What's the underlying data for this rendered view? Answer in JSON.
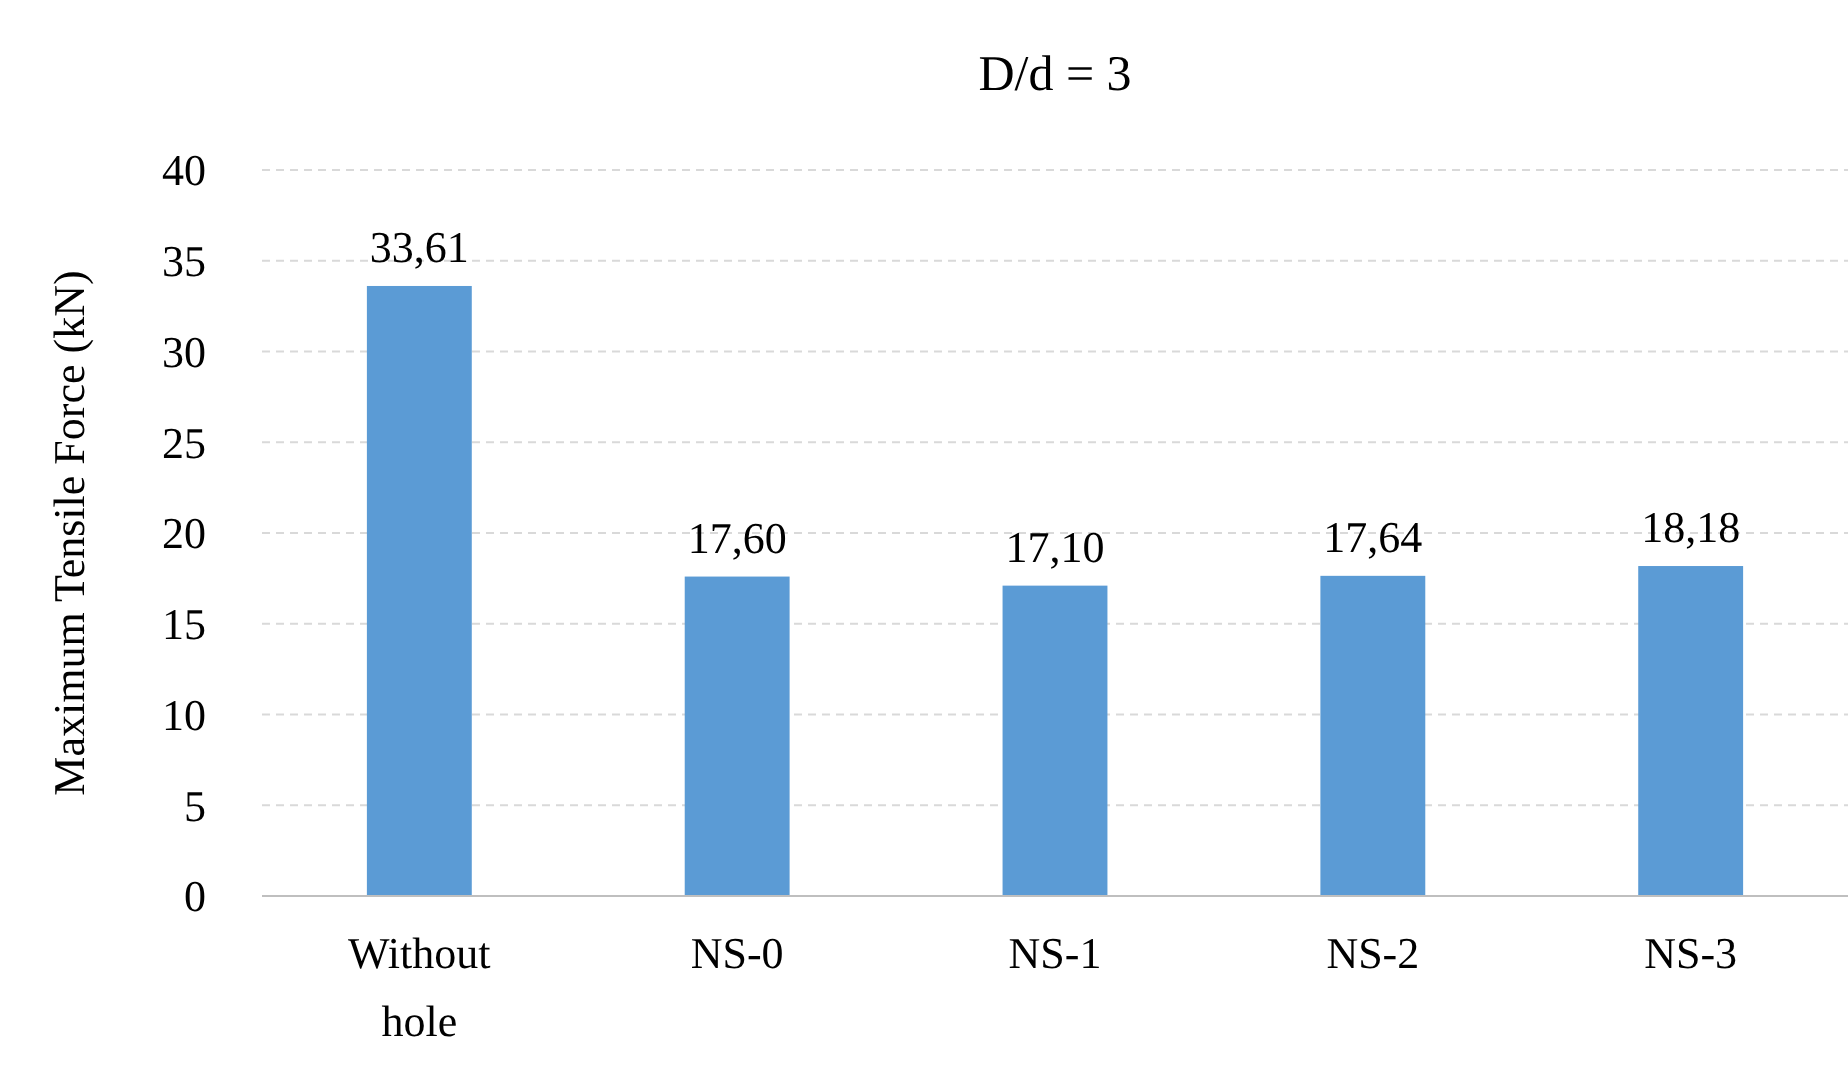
{
  "chart_data": {
    "type": "bar",
    "title": "D/d = 3",
    "ylabel": "Maximum Tensile Force (kN)",
    "categories": [
      "Without hole",
      "NS-0",
      "NS-1",
      "NS-2",
      "NS-3"
    ],
    "values": [
      33.61,
      17.6,
      17.1,
      17.64,
      18.18
    ],
    "value_labels": [
      "33,61",
      "17,60",
      "17,10",
      "17,64",
      "18,18"
    ],
    "color": "#5b9bd5",
    "ylim": [
      0,
      40
    ],
    "yticks": [
      0,
      5,
      10,
      15,
      20,
      25,
      30,
      35,
      40
    ],
    "grid": "y"
  }
}
